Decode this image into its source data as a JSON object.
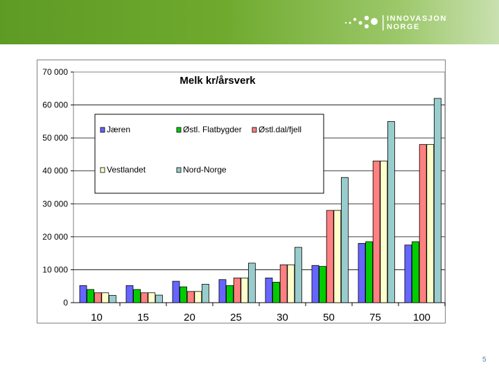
{
  "logo": {
    "line1": "INNOVASJON",
    "line2": "NORGE"
  },
  "page_number": "5",
  "colors": {
    "header_green": "#6faa2e",
    "series": [
      "#6666ff",
      "#00cc00",
      "#ff8080",
      "#ffffcc",
      "#99cccc"
    ]
  },
  "chart_data": {
    "type": "bar",
    "title": "Melk kr/årsverk",
    "xlabel": "",
    "ylabel": "",
    "ylim": [
      0,
      70000
    ],
    "yticks": [
      0,
      10000,
      20000,
      30000,
      40000,
      50000,
      60000,
      70000
    ],
    "ytick_labels": [
      "0",
      "10 000",
      "20 000",
      "30 000",
      "40 000",
      "50 000",
      "60 000",
      "70 000"
    ],
    "grid": true,
    "legend_position": "top-left inside plot",
    "categories": [
      "10",
      "15",
      "20",
      "25",
      "30",
      "50",
      "75",
      "100"
    ],
    "series": [
      {
        "name": "Jæren",
        "color": "#6666ff",
        "values": [
          5200,
          5200,
          6500,
          7000,
          7500,
          11300,
          18000,
          17500
        ]
      },
      {
        "name": "Østl. Flatbygder",
        "color": "#00cc00",
        "values": [
          4000,
          4000,
          4800,
          5200,
          6200,
          11000,
          18500,
          18500
        ]
      },
      {
        "name": "Østl.dal/fjell",
        "color": "#ff8080",
        "values": [
          3000,
          3000,
          3400,
          7500,
          11500,
          28000,
          43000,
          48000
        ]
      },
      {
        "name": "Vestlandet",
        "color": "#ffffcc",
        "values": [
          3000,
          3000,
          3400,
          7500,
          11500,
          28000,
          43000,
          48000
        ]
      },
      {
        "name": "Nord-Norge",
        "color": "#99cccc",
        "values": [
          2200,
          2300,
          5600,
          12000,
          16800,
          38000,
          55000,
          62000
        ]
      }
    ]
  }
}
